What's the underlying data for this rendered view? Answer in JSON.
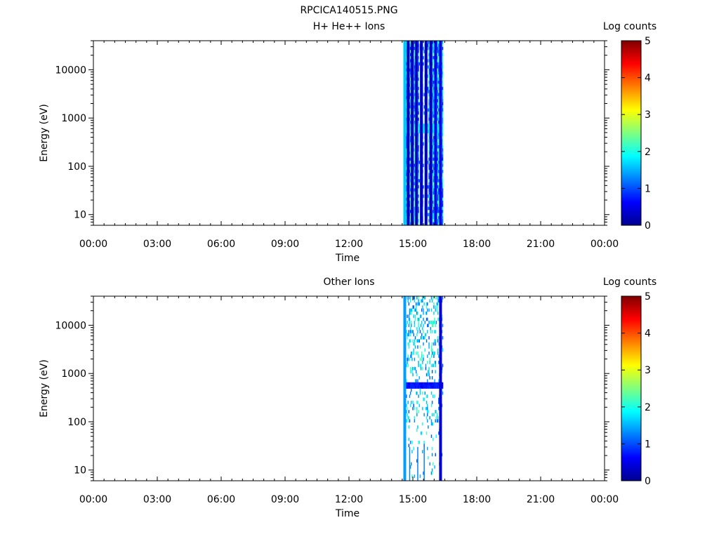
{
  "title": "RPCICA140515.PNG",
  "chart_data": [
    {
      "type": "heatmap",
      "title": "H+ He++ Ions",
      "xlabel": "Time",
      "ylabel": "Energy (eV)",
      "y_scale": "log",
      "ylim": [
        6,
        40000
      ],
      "xlim": [
        "00:00",
        "24:00"
      ],
      "x_ticks": [
        "00:00",
        "03:00",
        "06:00",
        "09:00",
        "12:00",
        "15:00",
        "18:00",
        "21:00",
        "00:00"
      ],
      "y_ticks": [
        "10",
        "100",
        "1000",
        "10000"
      ],
      "y_tick_values": [
        10,
        100,
        1000,
        10000
      ],
      "colorbar": {
        "label": "Log counts",
        "range": [
          0,
          5
        ],
        "ticks": [
          "0",
          "1",
          "2",
          "3",
          "4",
          "5"
        ]
      },
      "data_window": [
        "14:36",
        "16:25"
      ],
      "columns": [
        {
          "x": 14.62,
          "level": 1.6
        },
        {
          "x": 14.78,
          "level": 0.3
        },
        {
          "x": 14.97,
          "level": 0.3
        },
        {
          "x": 15.17,
          "level": 0.3
        },
        {
          "x": 15.4,
          "level": 0.3
        },
        {
          "x": 15.62,
          "level": 0.3
        },
        {
          "x": 15.85,
          "level": 0.3
        },
        {
          "x": 16.07,
          "level": 0.5
        },
        {
          "x": 16.3,
          "level": 0.5
        }
      ],
      "band": {
        "e_low": 480,
        "e_high": 750,
        "level": 1.8
      }
    },
    {
      "type": "heatmap",
      "title": "Other Ions",
      "xlabel": "Time",
      "ylabel": "Energy (eV)",
      "y_scale": "log",
      "ylim": [
        6,
        40000
      ],
      "xlim": [
        "00:00",
        "24:00"
      ],
      "x_ticks": [
        "00:00",
        "03:00",
        "06:00",
        "09:00",
        "12:00",
        "15:00",
        "18:00",
        "21:00",
        "00:00"
      ],
      "y_ticks": [
        "10",
        "100",
        "1000",
        "10000"
      ],
      "y_tick_values": [
        10,
        100,
        1000,
        10000
      ],
      "colorbar": {
        "label": "Log counts",
        "range": [
          0,
          5
        ],
        "ticks": [
          "0",
          "1",
          "2",
          "3",
          "4",
          "5"
        ]
      },
      "data_window": [
        "14:36",
        "16:25"
      ],
      "columns": [
        {
          "x": 14.62,
          "level": 1.4
        },
        {
          "x": 16.3,
          "level": 0.4
        }
      ],
      "band": {
        "e_low": 480,
        "e_high": 700,
        "level": 0.7
      }
    }
  ]
}
